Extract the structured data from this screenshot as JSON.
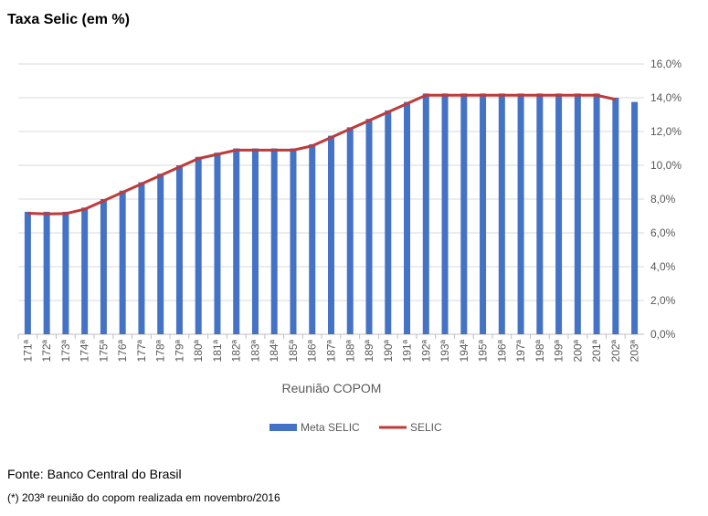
{
  "chart_data": {
    "type": "bar+line",
    "title": "Taxa Selic (em %)",
    "x_label": "Reunião COPOM",
    "categories": [
      "171ª",
      "172ª",
      "173ª",
      "174ª",
      "175ª",
      "176ª",
      "177ª",
      "178ª",
      "179ª",
      "180ª",
      "181ª",
      "182ª",
      "183ª",
      "184ª",
      "185ª",
      "186ª",
      "187ª",
      "188ª",
      "189ª",
      "190ª",
      "191ª",
      "192ª",
      "193ª",
      "194ª",
      "195ª",
      "196ª",
      "197ª",
      "198ª",
      "199ª",
      "200ª",
      "201ª",
      "202ª",
      "203ª"
    ],
    "series": [
      {
        "name": "Meta SELIC",
        "type": "bar",
        "color": "#4472c4",
        "values": [
          7.25,
          7.25,
          7.25,
          7.5,
          8,
          8.5,
          9,
          9.5,
          10,
          10.5,
          10.75,
          11,
          11,
          11,
          11,
          11.25,
          11.75,
          12.25,
          12.75,
          13.25,
          13.75,
          14.25,
          14.25,
          14.25,
          14.25,
          14.25,
          14.25,
          14.25,
          14.25,
          14.25,
          14.25,
          14,
          13.75
        ]
      },
      {
        "name": "SELIC",
        "type": "line",
        "color": "#be3b3b",
        "values": [
          7.16,
          7.12,
          7.14,
          7.4,
          7.9,
          8.4,
          8.9,
          9.4,
          9.9,
          10.4,
          10.65,
          10.9,
          10.9,
          10.9,
          10.9,
          11.15,
          11.65,
          12.15,
          12.65,
          13.15,
          13.65,
          14.15,
          14.15,
          14.15,
          14.15,
          14.15,
          14.15,
          14.15,
          14.15,
          14.15,
          14.15,
          13.9,
          null
        ]
      }
    ],
    "ylim": [
      0,
      16
    ],
    "yticks": [
      {
        "value": 0,
        "label": "0,0%"
      },
      {
        "value": 2,
        "label": "2,0%"
      },
      {
        "value": 4,
        "label": "4,0%"
      },
      {
        "value": 6,
        "label": "6,0%"
      },
      {
        "value": 8,
        "label": "8,0%"
      },
      {
        "value": 10,
        "label": "10,0%"
      },
      {
        "value": 12,
        "label": "12,0%"
      },
      {
        "value": 14,
        "label": "14,0%"
      },
      {
        "value": 16,
        "label": "16,0%"
      }
    ],
    "grid": true,
    "legend": "bottom",
    "source": "Fonte: Banco Central do Brasil",
    "note": "(*) 203ª reunião do copom realizada em novembro/2016"
  }
}
